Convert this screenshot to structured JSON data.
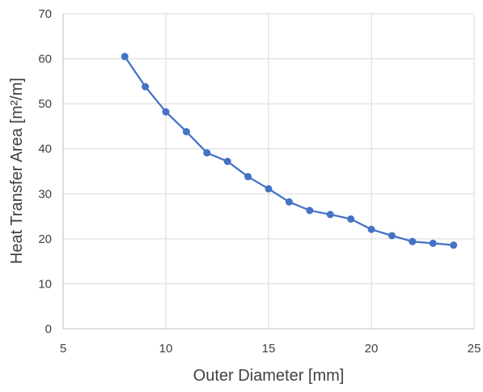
{
  "chart_data": {
    "type": "line",
    "title": "",
    "xlabel": "Outer Diameter [mm]",
    "ylabel": "Heat Transfer Area [m²/m]",
    "xlim": [
      5,
      25
    ],
    "ylim": [
      0,
      70
    ],
    "x_ticks": [
      5,
      10,
      15,
      20,
      25
    ],
    "y_ticks": [
      0,
      10,
      20,
      30,
      40,
      50,
      60,
      70
    ],
    "grid": true,
    "legend": "none",
    "series": [
      {
        "color": "#4472C4",
        "marker": "circle",
        "x": [
          8,
          9,
          10,
          11,
          12,
          13,
          14,
          15,
          16,
          17,
          18,
          19,
          20,
          21,
          22,
          23,
          24
        ],
        "y": [
          60.5,
          53.8,
          48.2,
          43.8,
          39.1,
          37.2,
          33.8,
          31.1,
          28.2,
          26.3,
          25.4,
          24.4,
          22.1,
          20.7,
          19.4,
          19.0,
          18.6
        ]
      }
    ]
  }
}
